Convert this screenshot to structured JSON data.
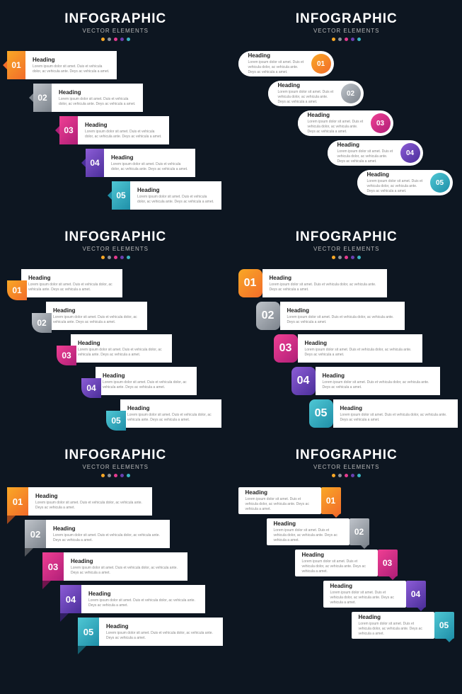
{
  "header": {
    "title": "INFOGRAPHIC",
    "subtitle": "VECTOR ELEMENTS"
  },
  "step_text": {
    "heading": "Heading",
    "body": "Lorem ipsum dolor sit amet. Duis et vehicula dolor, ac vehicula ante. Deys ac vehicula a amet."
  },
  "dot_colors": [
    "#f9a826",
    "#8e9299",
    "#e63b8f",
    "#6b3fb0",
    "#3bb4c1"
  ],
  "grad": {
    "c1": {
      "a": "#f9a826",
      "b": "#f26c2a"
    },
    "c2": {
      "a": "#bfc4ca",
      "b": "#7c838c"
    },
    "c3": {
      "a": "#ef3f93",
      "b": "#b01f78"
    },
    "c4": {
      "a": "#8c5cd6",
      "b": "#4b2f9a"
    },
    "c5": {
      "a": "#4fc7d4",
      "b": "#1f8fa8"
    }
  },
  "panels": [
    {
      "variant": "v1",
      "badge_side": "left",
      "stair_dir": "right",
      "step": 37
    },
    {
      "variant": "v2",
      "badge_side": "right",
      "stair_dir": "right",
      "step": 42
    },
    {
      "variant": "v3",
      "badge_side": "left",
      "stair_dir": "right",
      "step": 35
    },
    {
      "variant": "v4",
      "badge_side": "left",
      "stair_dir": "right",
      "step": 25
    },
    {
      "variant": "v5",
      "badge_side": "left",
      "stair_dir": "right",
      "step": 25
    },
    {
      "variant": "v6",
      "badge_side": "right",
      "stair_dir": "right",
      "step": 40
    }
  ],
  "numbers": [
    "01",
    "02",
    "03",
    "04",
    "05"
  ]
}
